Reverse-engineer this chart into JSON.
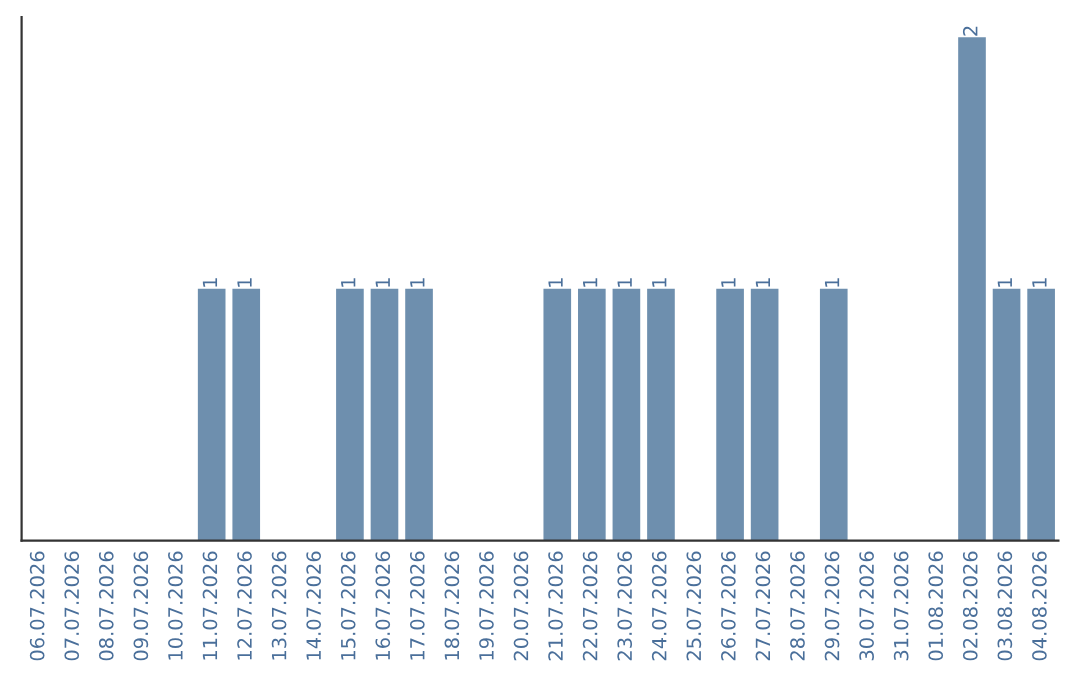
{
  "chart_data": {
    "type": "bar",
    "categories": [
      "06.07.2026",
      "07.07.2026",
      "08.07.2026",
      "09.07.2026",
      "10.07.2026",
      "11.07.2026",
      "12.07.2026",
      "13.07.2026",
      "14.07.2026",
      "15.07.2026",
      "16.07.2026",
      "17.07.2026",
      "18.07.2026",
      "19.07.2026",
      "20.07.2026",
      "21.07.2026",
      "22.07.2026",
      "23.07.2026",
      "24.07.2026",
      "25.07.2026",
      "26.07.2026",
      "27.07.2026",
      "28.07.2026",
      "29.07.2026",
      "30.07.2026",
      "31.07.2026",
      "01.08.2026",
      "02.08.2026",
      "03.08.2026",
      "04.08.2026"
    ],
    "values": [
      0,
      0,
      0,
      0,
      0,
      1,
      1,
      0,
      0,
      1,
      1,
      1,
      0,
      0,
      0,
      1,
      1,
      1,
      1,
      0,
      1,
      1,
      0,
      1,
      0,
      0,
      0,
      2,
      1,
      1
    ],
    "value_labels": [
      null,
      null,
      null,
      null,
      null,
      "1",
      "1",
      null,
      null,
      "1",
      "1",
      "1",
      null,
      null,
      null,
      "1",
      "1",
      "1",
      "1",
      null,
      "1",
      "1",
      null,
      "1",
      null,
      null,
      null,
      "2",
      "1",
      "1"
    ],
    "color": "#6e8fae",
    "ylim": [
      0,
      2.08
    ],
    "tick_labels": "x",
    "grid": false,
    "legend": false
  }
}
